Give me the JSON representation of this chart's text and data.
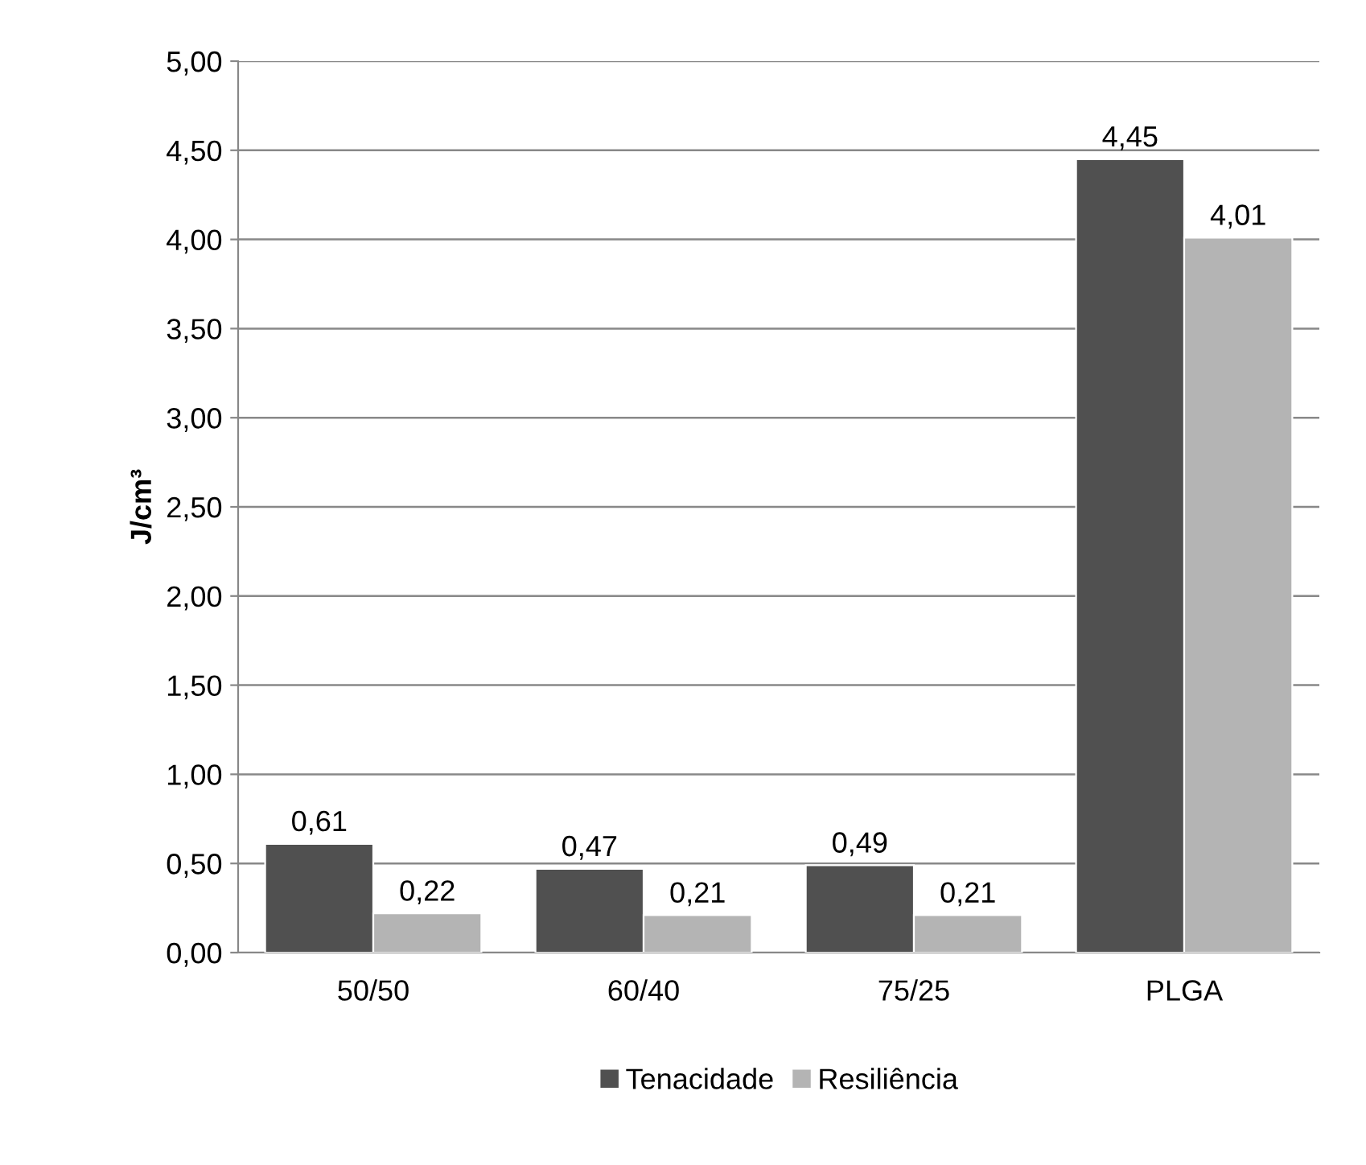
{
  "chart_data": {
    "type": "bar",
    "ylabel": "J/cm³",
    "categories": [
      "50/50",
      "60/40",
      "75/25",
      "PLGA"
    ],
    "series": [
      {
        "name": "Tenacidade",
        "color": "#505050",
        "values": [
          0.61,
          0.47,
          0.49,
          4.45
        ],
        "value_labels": [
          "0,61",
          "0,47",
          "0,49",
          "4,45"
        ]
      },
      {
        "name": "Resiliência",
        "color": "#b4b4b4",
        "values": [
          0.22,
          0.21,
          0.21,
          4.01
        ],
        "value_labels": [
          "0,22",
          "0,21",
          "0,21",
          "4,01"
        ]
      }
    ],
    "ylim": [
      0,
      5
    ],
    "yticks": [
      {
        "value": 0,
        "label": "0,00"
      },
      {
        "value": 0.5,
        "label": "0,50"
      },
      {
        "value": 1,
        "label": "1,00"
      },
      {
        "value": 1.5,
        "label": "1,50"
      },
      {
        "value": 2,
        "label": "2,00"
      },
      {
        "value": 2.5,
        "label": "2,50"
      },
      {
        "value": 3,
        "label": "3,00"
      },
      {
        "value": 3.5,
        "label": "3,50"
      },
      {
        "value": 4,
        "label": "4,00"
      },
      {
        "value": 4.5,
        "label": "4,50"
      },
      {
        "value": 5,
        "label": "5,00"
      }
    ],
    "grid": "y",
    "legend": "bottom"
  }
}
